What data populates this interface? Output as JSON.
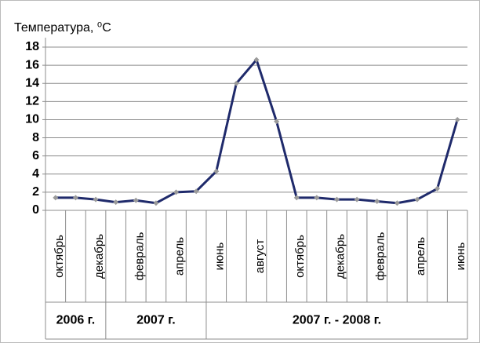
{
  "chart_data": {
    "type": "line",
    "y_axis_label": "Температура, ⁰С",
    "categories": [
      "октябрь",
      null,
      "декабрь",
      null,
      "февраль",
      null,
      "апрель",
      null,
      "июнь",
      null,
      "август",
      null,
      "октябрь",
      null,
      "декабрь",
      null,
      "февраль",
      null,
      "апрель",
      null,
      "июнь"
    ],
    "series": [
      {
        "color": "#1f2a6b",
        "values": [
          1.4,
          1.4,
          1.2,
          0.9,
          1.1,
          0.8,
          2.0,
          2.1,
          4.3,
          14.0,
          16.6,
          9.8,
          1.4,
          1.4,
          1.2,
          1.2,
          1.0,
          0.8,
          1.2,
          2.4,
          10.0
        ]
      }
    ],
    "groups": [
      {
        "label": "2006 г.",
        "first": 0,
        "last": 2
      },
      {
        "label": "2007 г.",
        "first": 3,
        "last": 7
      },
      {
        "label": "2007 г. - 2008 г.",
        "first": 8,
        "last": 20
      }
    ],
    "ylim": [
      0,
      18
    ],
    "yticks": [
      0,
      2,
      4,
      6,
      8,
      10,
      12,
      14,
      16,
      18
    ],
    "grid": true
  }
}
